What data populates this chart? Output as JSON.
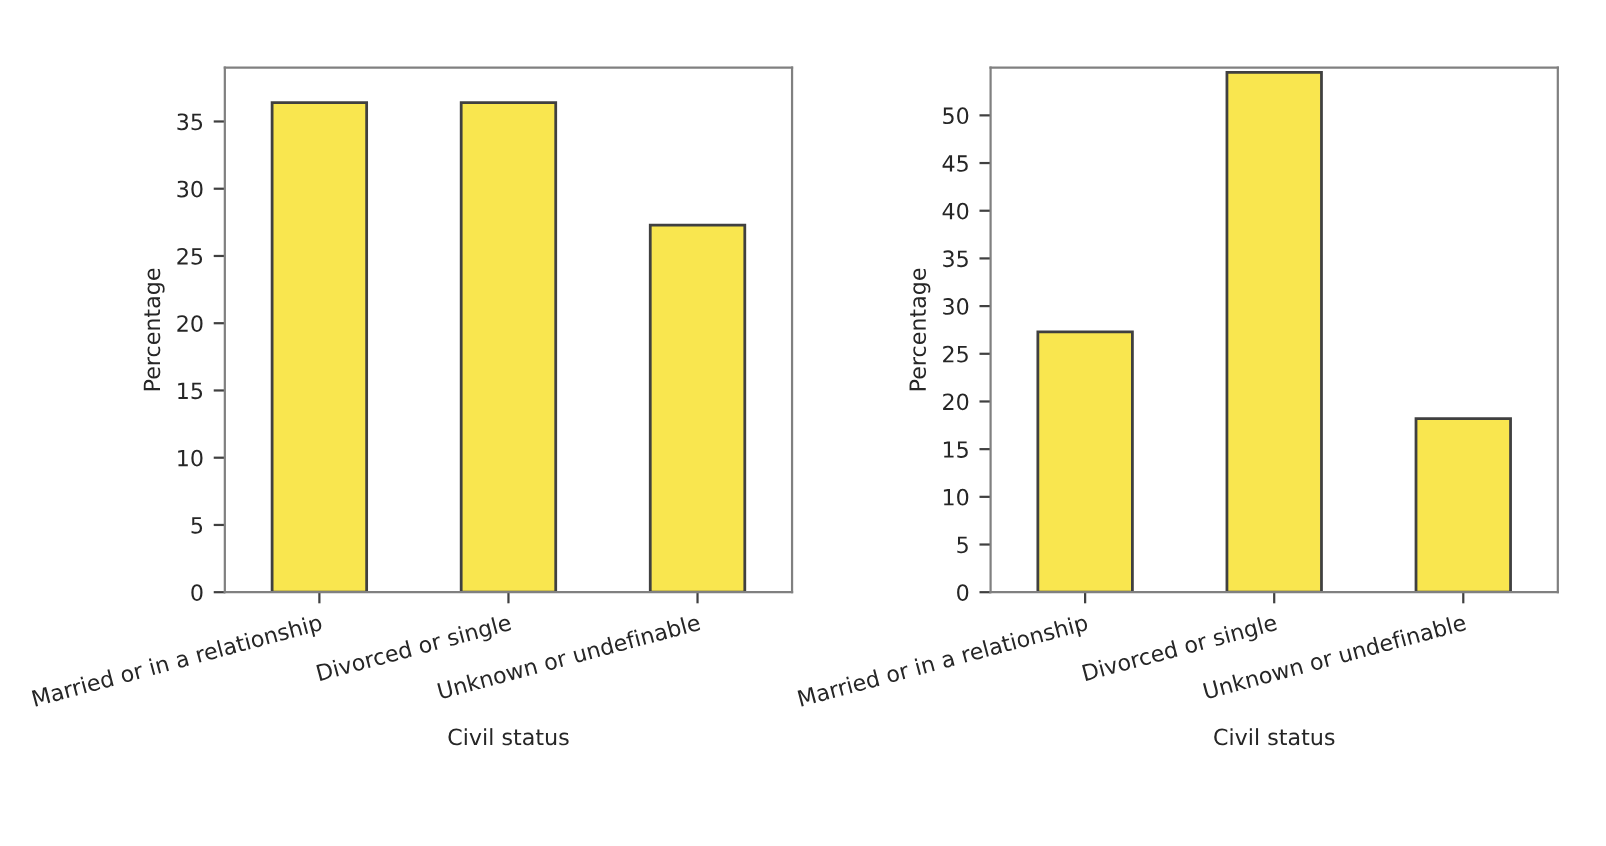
{
  "chart_data": [
    {
      "type": "bar",
      "xlabel": "Civil status",
      "ylabel": "Percentage",
      "categories": [
        "Married or in a relationship",
        "Divorced or single",
        "Unknown or undefinable"
      ],
      "values": [
        36.4,
        36.4,
        27.3
      ],
      "color": "#f9e64f",
      "ylim": [
        0,
        39
      ],
      "yticks": [
        0,
        5,
        10,
        15,
        20,
        25,
        30,
        35
      ],
      "grid": false,
      "legend": false
    },
    {
      "type": "bar",
      "xlabel": "Civil status",
      "ylabel": "Percentage",
      "categories": [
        "Married or in a relationship",
        "Divorced or single",
        "Unknown or undefinable"
      ],
      "values": [
        27.3,
        54.5,
        18.2
      ],
      "color": "#f9e64f",
      "ylim": [
        0,
        55
      ],
      "yticks": [
        0,
        5,
        10,
        15,
        20,
        25,
        30,
        35,
        40,
        45,
        50
      ],
      "grid": false,
      "legend": false
    }
  ]
}
